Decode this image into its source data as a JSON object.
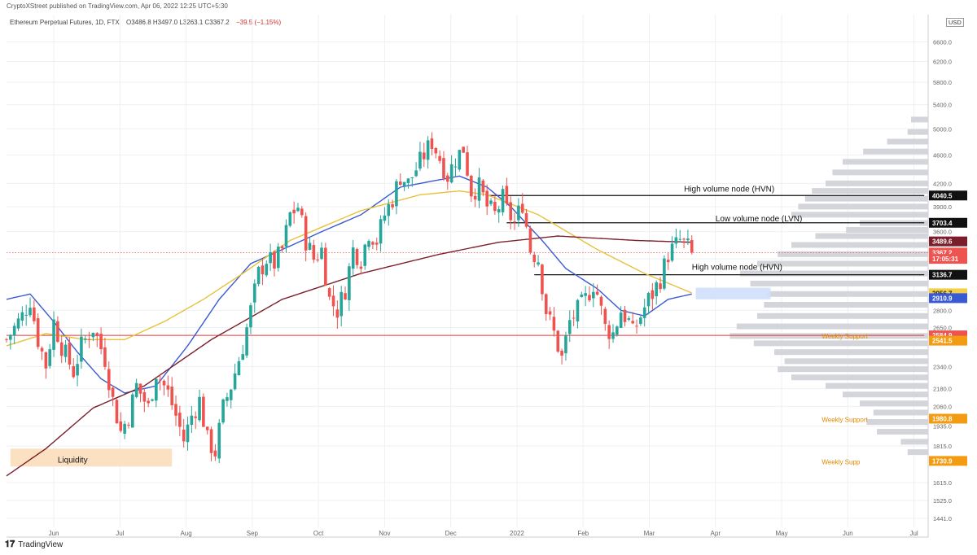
{
  "header": {
    "publisher": "CryptoXStreet published on TradingView.com, Apr 06, 2022 12:25 UTC+5:30",
    "symbol": "Ethereum Perpetual Futures, 1D, FTX",
    "ohlc": "O3486.8 H3497.0 L3263.1 C3367.2",
    "change": "−39.5 (−1.15%)",
    "currency": "USD"
  },
  "footer": {
    "logo_text": "TradingView"
  },
  "colors": {
    "up": "#26a69a",
    "down": "#ef5350",
    "sma_fast": "#3a5ad4",
    "sma_mid": "#e8c13a",
    "sma_slow": "#7a1f2a",
    "support": "#e53935",
    "liquidity": "#fbe1c2",
    "volume_profile": "#d3d5da"
  },
  "chart_data": {
    "type": "candlestick",
    "x_months": [
      "Jun",
      "Jul",
      "Aug",
      "Sep",
      "Oct",
      "Nov",
      "Dec",
      "2022",
      "Feb",
      "Mar",
      "Apr",
      "May",
      "Jun",
      "Jul"
    ],
    "y_axis": {
      "scale": "log",
      "ticks": [
        6600.0,
        6200.0,
        5800.0,
        5400.0,
        5000.0,
        4600.0,
        4200.0,
        3900.0,
        3600.0,
        3300.0,
        2800.0,
        2650.0,
        2340.0,
        2180.0,
        2060.0,
        1935.0,
        1815.0,
        1615.0,
        1525.0,
        1441.0
      ],
      "range": [
        1400,
        7200
      ]
    },
    "price_labels": [
      {
        "value": "4040.5",
        "style": "black"
      },
      {
        "value": "3703.4",
        "style": "black"
      },
      {
        "value": "3489.6",
        "style": "maroon"
      },
      {
        "value": "3367.2",
        "style": "red"
      },
      {
        "value": "17:05:31",
        "style": "red"
      },
      {
        "value": "3136.7",
        "style": "black"
      },
      {
        "value": "2956.7",
        "style": "yellow"
      },
      {
        "value": "2910.9",
        "style": "blue"
      },
      {
        "value": "2584.9",
        "style": "red"
      },
      {
        "value": "2541.5",
        "style": "orange"
      },
      {
        "value": "1980.8",
        "style": "orange"
      },
      {
        "value": "1730.9",
        "style": "orange"
      }
    ],
    "annotations": [
      {
        "text": "High volume node (HVN)",
        "level": 4040.5
      },
      {
        "text": "Low volume node (LVN)",
        "level": 3703.4
      },
      {
        "text": "High volume node (HVN)",
        "level": 3136.7
      },
      {
        "text": "Weekly Support",
        "level": 2584.9
      },
      {
        "text": "Weekly Support",
        "level": 1980.8
      },
      {
        "text": "Weekly Supp",
        "level": 1730.9
      },
      {
        "text": "Liquidity",
        "level": 1740
      }
    ],
    "ohlc_path": [
      [
        2550,
        0
      ],
      [
        2750,
        4
      ],
      [
        2900,
        6
      ],
      [
        2550,
        8
      ],
      [
        2350,
        10
      ],
      [
        2700,
        12
      ],
      [
        2500,
        14
      ],
      [
        2300,
        17
      ],
      [
        2500,
        19
      ],
      [
        2650,
        22
      ],
      [
        2400,
        25
      ],
      [
        2100,
        27
      ],
      [
        1900,
        29
      ],
      [
        2000,
        31
      ],
      [
        2200,
        33
      ],
      [
        2050,
        36
      ],
      [
        2300,
        38
      ],
      [
        2150,
        41
      ],
      [
        2000,
        43
      ],
      [
        1850,
        45
      ],
      [
        2000,
        47
      ],
      [
        2100,
        49
      ],
      [
        1850,
        51
      ],
      [
        1780,
        53
      ],
      [
        2050,
        55
      ],
      [
        2200,
        57
      ],
      [
        2500,
        60
      ],
      [
        2800,
        62
      ],
      [
        3150,
        64
      ],
      [
        3300,
        66
      ],
      [
        3250,
        68
      ],
      [
        3400,
        70
      ],
      [
        3800,
        72
      ],
      [
        3900,
        74
      ],
      [
        3500,
        76
      ],
      [
        3300,
        78
      ],
      [
        3400,
        80
      ],
      [
        2900,
        82
      ],
      [
        2800,
        84
      ],
      [
        3000,
        86
      ],
      [
        3400,
        88
      ],
      [
        3300,
        90
      ],
      [
        3600,
        92
      ],
      [
        3500,
        94
      ],
      [
        3800,
        96
      ],
      [
        4000,
        98
      ],
      [
        4300,
        100
      ],
      [
        4200,
        102
      ],
      [
        4400,
        104
      ],
      [
        4600,
        106
      ],
      [
        4800,
        108
      ],
      [
        4550,
        110
      ],
      [
        4300,
        112
      ],
      [
        4550,
        114
      ],
      [
        4700,
        116
      ],
      [
        4100,
        118
      ],
      [
        4150,
        120
      ],
      [
        3900,
        122
      ],
      [
        3800,
        124
      ],
      [
        4000,
        126
      ],
      [
        3850,
        127
      ],
      [
        3700,
        129
      ],
      [
        3950,
        131
      ],
      [
        3400,
        133
      ],
      [
        3300,
        135
      ],
      [
        2800,
        137
      ],
      [
        2600,
        139
      ],
      [
        2400,
        141
      ],
      [
        2700,
        143
      ],
      [
        2800,
        145
      ],
      [
        2900,
        147
      ],
      [
        3050,
        149
      ],
      [
        2950,
        150
      ],
      [
        2650,
        152
      ],
      [
        2600,
        154
      ],
      [
        2800,
        156
      ],
      [
        2700,
        158
      ],
      [
        2600,
        159
      ],
      [
        2750,
        161
      ],
      [
        2900,
        163
      ],
      [
        2950,
        164
      ],
      [
        3100,
        166
      ],
      [
        3350,
        168
      ],
      [
        3450,
        170
      ],
      [
        3500,
        171
      ],
      [
        3420,
        173
      ],
      [
        3367,
        174
      ]
    ],
    "series": [
      {
        "values": [
          [
            2900,
            0
          ],
          [
            2950,
            6
          ],
          [
            2700,
            12
          ],
          [
            2450,
            18
          ],
          [
            2250,
            24
          ],
          [
            2150,
            30
          ],
          [
            2200,
            38
          ],
          [
            2500,
            46
          ],
          [
            2900,
            54
          ],
          [
            3250,
            62
          ],
          [
            3400,
            70
          ],
          [
            3600,
            80
          ],
          [
            3800,
            90
          ],
          [
            4150,
            100
          ],
          [
            4250,
            110
          ],
          [
            4300,
            115
          ],
          [
            4150,
            122
          ],
          [
            3900,
            128
          ],
          [
            3500,
            136
          ],
          [
            3200,
            142
          ],
          [
            3000,
            150
          ],
          [
            2800,
            156
          ],
          [
            2750,
            162
          ],
          [
            2900,
            168
          ],
          [
            2950,
            174
          ]
        ]
      },
      {
        "values": [
          [
            2500,
            0
          ],
          [
            2600,
            10
          ],
          [
            2550,
            20
          ],
          [
            2550,
            30
          ],
          [
            2700,
            40
          ],
          [
            2900,
            50
          ],
          [
            3150,
            60
          ],
          [
            3500,
            72
          ],
          [
            3850,
            90
          ],
          [
            4050,
            105
          ],
          [
            4100,
            115
          ],
          [
            4050,
            122
          ],
          [
            3800,
            135
          ],
          [
            3400,
            150
          ],
          [
            3150,
            162
          ],
          [
            2960,
            174
          ]
        ]
      },
      {
        "values": [
          [
            1650,
            0
          ],
          [
            1800,
            10
          ],
          [
            2050,
            22
          ],
          [
            2200,
            35
          ],
          [
            2550,
            52
          ],
          [
            2900,
            70
          ],
          [
            3150,
            90
          ],
          [
            3350,
            110
          ],
          [
            3480,
            125
          ],
          [
            3550,
            140
          ],
          [
            3500,
            160
          ],
          [
            3480,
            174
          ]
        ]
      }
    ],
    "levels": [
      {
        "value": 4040.5,
        "x_range": [
          122,
          233
        ]
      },
      {
        "value": 3703.4,
        "x_range": [
          127,
          233
        ]
      },
      {
        "value": 3136.7,
        "x_range": [
          134,
          233
        ]
      },
      {
        "value": 2584.9,
        "x_range": [
          0,
          233
        ]
      }
    ],
    "last_price_line": 3367.2,
    "shaded_zone": {
      "from": 2900,
      "to": 3010,
      "x_range": [
        175,
        194
      ]
    },
    "liquidity_zone": {
      "from": 1700,
      "to": 1800,
      "x_range": [
        1,
        42
      ]
    },
    "volume_profile": [
      [
        5150,
        0.05
      ],
      [
        4950,
        0.06
      ],
      [
        4800,
        0.12
      ],
      [
        4650,
        0.19
      ],
      [
        4500,
        0.25
      ],
      [
        4350,
        0.28
      ],
      [
        4200,
        0.3
      ],
      [
        4100,
        0.34
      ],
      [
        4000,
        0.36
      ],
      [
        3900,
        0.38
      ],
      [
        3800,
        0.4
      ],
      [
        3700,
        0.2
      ],
      [
        3620,
        0.24
      ],
      [
        3550,
        0.33
      ],
      [
        3450,
        0.4
      ],
      [
        3350,
        0.44
      ],
      [
        3250,
        0.5
      ],
      [
        3150,
        0.55
      ],
      [
        3050,
        0.52
      ],
      [
        2950,
        0.47
      ],
      [
        2850,
        0.48
      ],
      [
        2750,
        0.5
      ],
      [
        2660,
        0.56
      ],
      [
        2580,
        0.58
      ],
      [
        2520,
        0.51
      ],
      [
        2450,
        0.45
      ],
      [
        2380,
        0.42
      ],
      [
        2320,
        0.44
      ],
      [
        2260,
        0.4
      ],
      [
        2200,
        0.3
      ],
      [
        2140,
        0.25
      ],
      [
        2080,
        0.2
      ],
      [
        2020,
        0.16
      ],
      [
        1960,
        0.18
      ],
      [
        1900,
        0.15
      ],
      [
        1840,
        0.08
      ],
      [
        1780,
        0.06
      ]
    ]
  }
}
